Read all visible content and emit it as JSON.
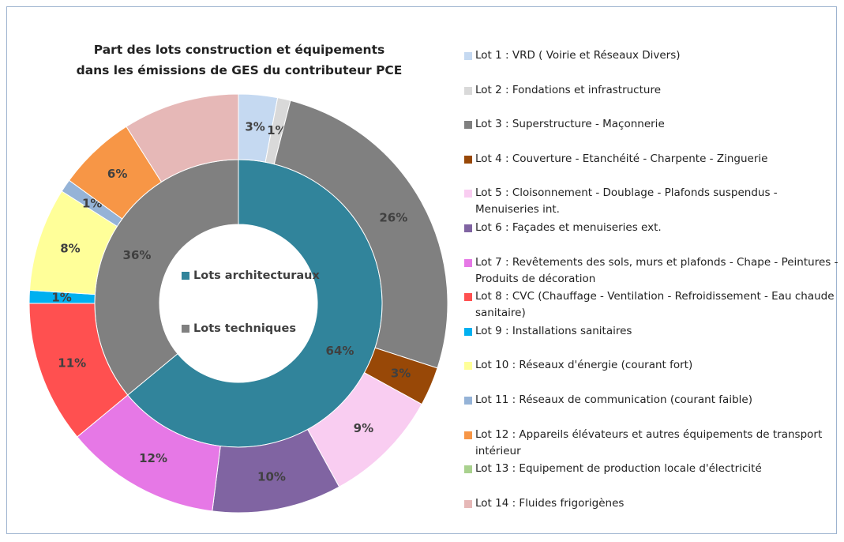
{
  "chart_data": {
    "type": "doughnut",
    "title": "Part des lots construction et équipements\ndans les émissions de GES du contributeur PCE",
    "rings": [
      {
        "categories": [
          "Lots architecturaux",
          "Lots techniques"
        ],
        "values": [
          64,
          36
        ],
        "value_labels": [
          "64%",
          "36%"
        ],
        "colors": [
          "#31849b",
          "#808080"
        ]
      },
      {
        "categories": [
          "Lot 1 : VRD ( Voirie et Réseaux Divers)",
          "Lot 2 : Fondations et infrastructure",
          "Lot 3 : Superstructure - Maçonnerie",
          "Lot 4 : Couverture - Etanchéité - Charpente - Zinguerie",
          "Lot 5 : Cloisonnement - Doublage - Plafonds suspendus - Menuiseries int.",
          "Lot 6 : Façades et menuiseries ext.",
          "Lot 7 : Revêtements des sols, murs et plafonds - Chape - Peintures - Produits de décoration",
          "Lot 8 : CVC (Chauffage - Ventilation - Refroidissement - Eau chaude sanitaire)",
          "Lot 9 : Installations sanitaires",
          "Lot 10 : Réseaux d'énergie (courant fort)",
          "Lot 11 : Réseaux de communication (courant faible)",
          "Lot 12 : Appareils élévateurs et autres équipements de transport intérieur",
          "Lot 13 : Equipement de production locale d'électricité",
          "Lot 14 : Fluides frigorigènes"
        ],
        "values": [
          3,
          1,
          26,
          3,
          9,
          10,
          12,
          11,
          1,
          8,
          1,
          6,
          0,
          9
        ],
        "value_labels": [
          "3%",
          "1%",
          "26%",
          "3%",
          "9%",
          "10%",
          "12%",
          "11%",
          "1%",
          "8%",
          "1%",
          "6%",
          null,
          null
        ],
        "colors": [
          "#c5d9f1",
          "#d9d9d9",
          "#808080",
          "#984807",
          "#f9cdf1",
          "#8064a2",
          "#e678e6",
          "#ff5050",
          "#00b0f0",
          "#ffff99",
          "#95b3d7",
          "#f79646",
          "#a9d18e",
          "#e6b8b7"
        ]
      }
    ]
  }
}
